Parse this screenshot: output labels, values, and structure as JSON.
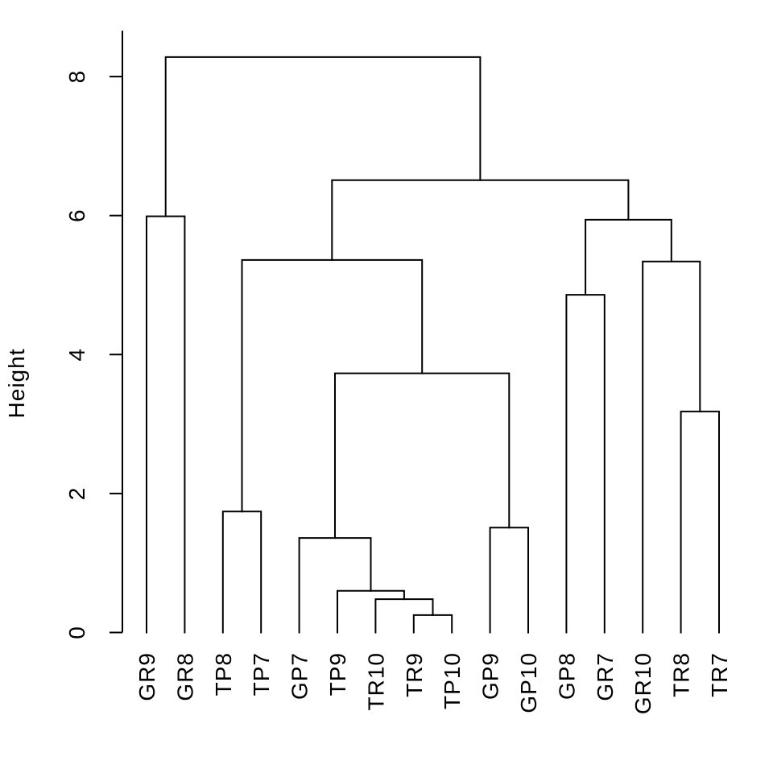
{
  "figure": {
    "background": "#ffffff",
    "foreground": "#000000"
  },
  "chart_data": {
    "type": "dendrogram",
    "title": "",
    "xlabel": "",
    "ylabel": "Height",
    "grid": false,
    "legend": null,
    "y_axis": {
      "label": "Height",
      "ticks": [
        0,
        2,
        4,
        6,
        8
      ],
      "range": [
        0,
        8.66
      ]
    },
    "leaf_order": [
      "GR9",
      "GR8",
      "TP8",
      "TP7",
      "GP7",
      "TP9",
      "TR10",
      "TR9",
      "TP10",
      "GP9",
      "GP10",
      "GP8",
      "GR7",
      "GR10",
      "TR8",
      "TR7"
    ],
    "tree": {
      "h": 8.28,
      "children": [
        {
          "h": 5.99,
          "children": [
            {
              "leaf": "GR9"
            },
            {
              "leaf": "GR8"
            }
          ]
        },
        {
          "h": 6.51,
          "children": [
            {
              "h": 5.36,
              "children": [
                {
                  "h": 1.74,
                  "children": [
                    {
                      "leaf": "TP8"
                    },
                    {
                      "leaf": "TP7"
                    }
                  ]
                },
                {
                  "h": 3.73,
                  "children": [
                    {
                      "h": 1.36,
                      "children": [
                        {
                          "leaf": "GP7"
                        },
                        {
                          "h": 0.6,
                          "children": [
                            {
                              "leaf": "TP9"
                            },
                            {
                              "h": 0.48,
                              "children": [
                                {
                                  "leaf": "TR10"
                                },
                                {
                                  "h": 0.25,
                                  "children": [
                                    {
                                      "leaf": "TR9"
                                    },
                                    {
                                      "leaf": "TP10"
                                    }
                                  ]
                                }
                              ]
                            }
                          ]
                        }
                      ]
                    },
                    {
                      "h": 1.51,
                      "children": [
                        {
                          "leaf": "GP9"
                        },
                        {
                          "leaf": "GP10"
                        }
                      ]
                    }
                  ]
                }
              ]
            },
            {
              "h": 5.94,
              "children": [
                {
                  "h": 4.86,
                  "children": [
                    {
                      "leaf": "GP8"
                    },
                    {
                      "leaf": "GR7"
                    }
                  ]
                },
                {
                  "h": 5.34,
                  "children": [
                    {
                      "leaf": "GR10"
                    },
                    {
                      "h": 3.18,
                      "children": [
                        {
                          "leaf": "TR8"
                        },
                        {
                          "leaf": "TR7"
                        }
                      ]
                    }
                  ]
                }
              ]
            }
          ]
        }
      ]
    }
  }
}
